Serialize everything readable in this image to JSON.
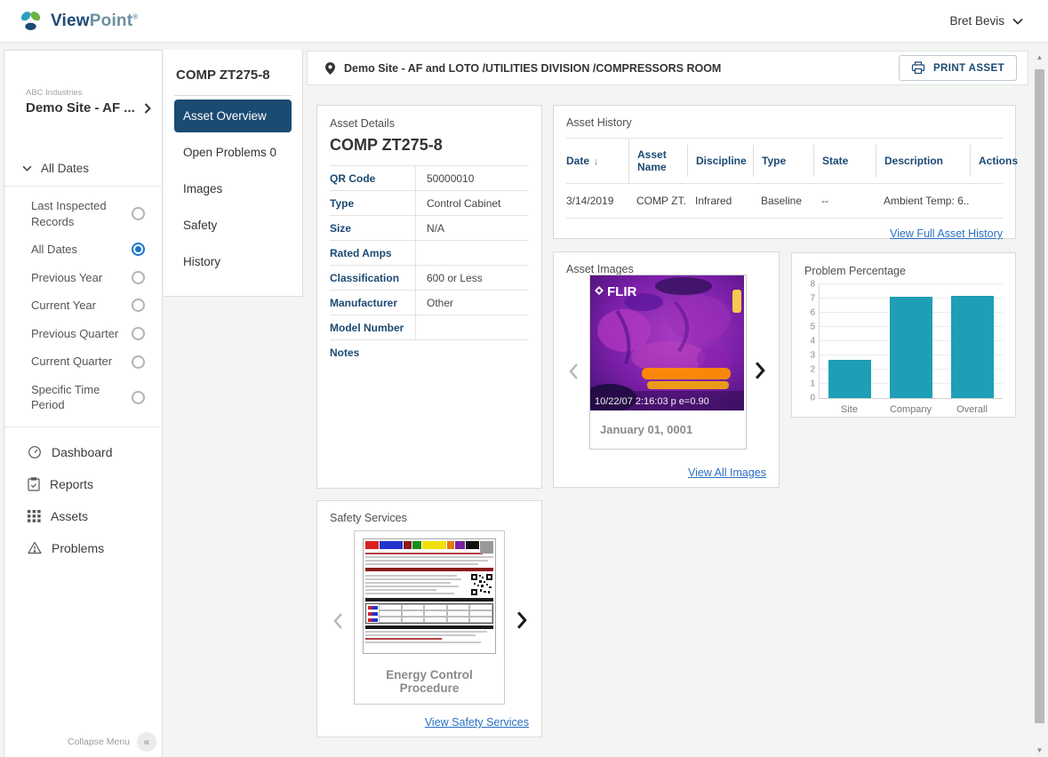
{
  "header": {
    "brand": {
      "word1": "View",
      "word2": "Point",
      "registered": "®"
    },
    "user_name": "Bret Bevis"
  },
  "sidebar": {
    "company": "ABC Industries",
    "site_name": "Demo Site - AF ...",
    "date_filter_header": "All Dates",
    "date_options": [
      {
        "label": "Last Inspected Records",
        "selected": false
      },
      {
        "label": "All Dates",
        "selected": true
      },
      {
        "label": "Previous Year",
        "selected": false
      },
      {
        "label": "Current Year",
        "selected": false
      },
      {
        "label": "Previous Quarter",
        "selected": false
      },
      {
        "label": "Current Quarter",
        "selected": false
      },
      {
        "label": "Specific Time Period",
        "selected": false
      }
    ],
    "nav_items": [
      {
        "label": "Dashboard"
      },
      {
        "label": "Reports"
      },
      {
        "label": "Assets"
      },
      {
        "label": "Problems"
      }
    ],
    "collapse_label": "Collapse Menu",
    "collapse_glyph": "«"
  },
  "asset_nav": {
    "title": "COMP ZT275-8",
    "items": [
      {
        "label": "Asset Overview",
        "selected": true
      },
      {
        "label": "Open Problems 0",
        "selected": false
      },
      {
        "label": "Images",
        "selected": false
      },
      {
        "label": "Safety",
        "selected": false
      },
      {
        "label": "History",
        "selected": false
      }
    ]
  },
  "toolbar": {
    "breadcrumb": "Demo Site - AF and LOTO /UTILITIES DIVISION /COMPRESSORS ROOM",
    "print_button": "PRINT ASSET"
  },
  "asset_details": {
    "title": "Asset Details",
    "asset_name": "COMP ZT275-8",
    "rows": [
      {
        "label": "QR Code",
        "value": "50000010"
      },
      {
        "label": "Type",
        "value": "Control Cabinet"
      },
      {
        "label": "Size",
        "value": "N/A"
      },
      {
        "label": "Rated Amps",
        "value": ""
      },
      {
        "label": "Classification",
        "value": "600 or Less"
      },
      {
        "label": "Manufacturer",
        "value": "Other"
      },
      {
        "label": "Model Number",
        "value": ""
      }
    ],
    "notes_label": "Notes"
  },
  "asset_history": {
    "title": "Asset History",
    "columns": [
      "Date",
      "Asset Name",
      "Discipline",
      "Type",
      "State",
      "Description",
      "Actions"
    ],
    "sort_icon": "↓",
    "rows": [
      {
        "date": "3/14/2019",
        "asset_name": "COMP ZT...",
        "discipline": "Infrared",
        "type": "Baseline",
        "state": "--",
        "description": "Ambient Temp: 6...",
        "actions": ""
      }
    ],
    "link": "View Full Asset History"
  },
  "asset_images": {
    "title": "Asset Images",
    "flir_brand": "FLIR",
    "image_timestamp": "10/22/07  2:16:03 p e=0.90",
    "caption": "January 01, 0001",
    "link": "View All Images"
  },
  "safety_services": {
    "title": "Safety Services",
    "caption": "Energy Control Procedure",
    "link": "View Safety Services"
  },
  "chart_data": {
    "type": "bar",
    "title": "Problem Percentage",
    "categories": [
      "Site",
      "Company",
      "Overall"
    ],
    "values": [
      2.7,
      7.1,
      7.2
    ],
    "xlabel": "",
    "ylabel": "",
    "ylim": [
      0,
      8
    ],
    "yticks": [
      0,
      1,
      2,
      3,
      4,
      5,
      6,
      7,
      8
    ],
    "bar_color": "#1e9fb5",
    "grid": true,
    "legend": false
  }
}
